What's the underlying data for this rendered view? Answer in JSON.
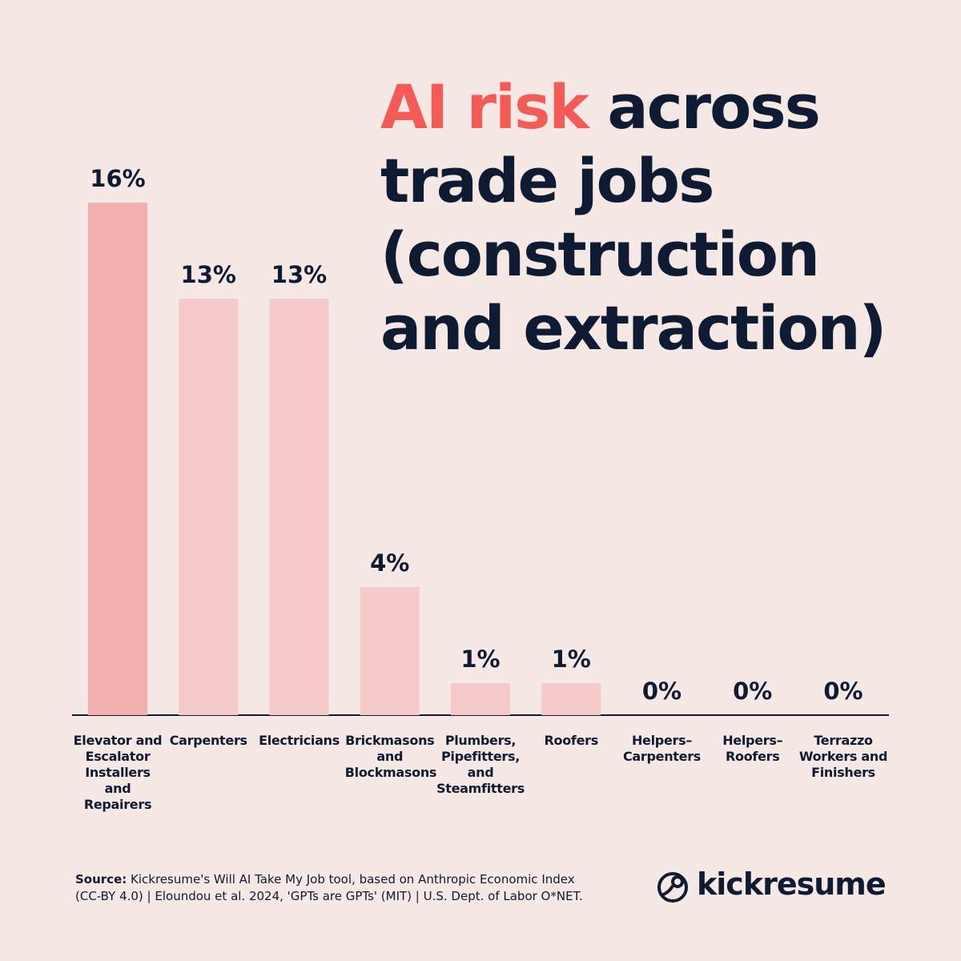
{
  "chart_data": {
    "type": "bar",
    "title_highlight": "AI risk",
    "title": "across trade jobs (construction and extraction)",
    "categories": [
      "Elevator and Escalator Installers and Repairers",
      "Carpenters",
      "Electricians",
      "Brickmasons and Blockmasons",
      "Plumbers, Pipefitters, and Steamfitters",
      "Roofers",
      "Helpers–Carpenters",
      "Helpers–Roofers",
      "Terrazzo Workers and Finishers"
    ],
    "values": [
      16,
      13,
      13,
      4,
      1,
      1,
      0,
      0,
      0
    ],
    "value_labels": [
      "16%",
      "13%",
      "13%",
      "4%",
      "1%",
      "1%",
      "0%",
      "0%",
      "0%"
    ],
    "colors": [
      "#f2b1ad",
      "#f6cacb",
      "#f6cacb",
      "#f6cacb",
      "#f6cacb",
      "#f6cacb",
      "#f6cacb",
      "#f6cacb",
      "#f6cacb"
    ]
  },
  "footer": {
    "source_label": "Source:",
    "source_text": "Kickresume's Will AI Take My Job tool, based on Anthropic Economic Index (CC-BY 4.0) | Eloundou et al. 2024, 'GPTs are GPTs' (MIT) | U.S. Dept. of Labor O*NET.",
    "brand": "kickresume"
  }
}
